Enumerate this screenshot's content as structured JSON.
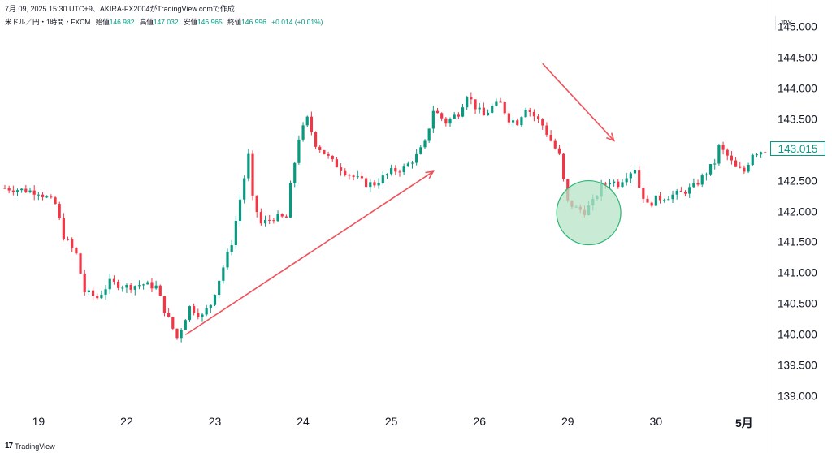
{
  "header": {
    "info": "7月 09, 2025 15:30 UTC+9、AKIRA-FX2004がTradingView.comで作成"
  },
  "symbol": {
    "name": "米ドル／円・1時間・FXCM",
    "open_label": "始値",
    "open": "146.982",
    "high_label": "高値",
    "high": "147.032",
    "low_label": "安値",
    "low": "146.965",
    "close_label": "終値",
    "close": "146.996",
    "change": "+0.014 (+0.01%)"
  },
  "currency": "JPY",
  "price_axis": {
    "labels": [
      "145.000",
      "144.500",
      "144.000",
      "143.500",
      "143.000",
      "142.500",
      "142.000",
      "141.500",
      "141.000",
      "140.500",
      "140.000",
      "139.500",
      "139.000"
    ],
    "last_price": "143.015"
  },
  "time_axis": {
    "labels": [
      "19",
      "22",
      "23",
      "24",
      "25",
      "26",
      "29",
      "30",
      "5月"
    ]
  },
  "footer": {
    "brand": "TradingView"
  },
  "colors": {
    "up": "#089981",
    "down": "#f23645",
    "arrow": "#f0525a",
    "circle_fill": "#b7e4c7",
    "circle_stroke": "#2bb673"
  },
  "chart_data": {
    "type": "candlestick",
    "ylim": [
      138.78,
      145.3
    ],
    "x_ticks": [
      {
        "label": "19",
        "index": 8
      },
      {
        "label": "22",
        "index": 29
      },
      {
        "label": "23",
        "index": 50
      },
      {
        "label": "24",
        "index": 71
      },
      {
        "label": "25",
        "index": 92
      },
      {
        "label": "26",
        "index": 113
      },
      {
        "label": "29",
        "index": 134
      },
      {
        "label": "30",
        "index": 155
      },
      {
        "label": "5月",
        "index": 176
      }
    ],
    "last_price": 143.015,
    "close_path": [
      [
        0,
        142.38
      ],
      [
        8,
        142.32
      ],
      [
        12,
        142.12
      ],
      [
        14,
        141.6
      ],
      [
        17,
        141.3
      ],
      [
        19,
        140.7
      ],
      [
        22,
        140.6
      ],
      [
        25,
        140.85
      ],
      [
        29,
        140.78
      ],
      [
        33,
        140.82
      ],
      [
        36,
        140.78
      ],
      [
        38,
        140.4
      ],
      [
        41,
        139.95
      ],
      [
        44,
        140.45
      ],
      [
        47,
        140.3
      ],
      [
        49,
        140.5
      ],
      [
        52,
        141.1
      ],
      [
        54,
        141.5
      ],
      [
        56,
        142.2
      ],
      [
        58,
        142.9
      ],
      [
        59,
        142.2
      ],
      [
        61,
        141.8
      ],
      [
        64,
        141.9
      ],
      [
        67,
        141.9
      ],
      [
        68,
        142.4
      ],
      [
        70,
        143.2
      ],
      [
        72,
        143.5
      ],
      [
        74,
        143.1
      ],
      [
        78,
        142.8
      ],
      [
        82,
        142.6
      ],
      [
        86,
        142.45
      ],
      [
        88,
        142.45
      ],
      [
        92,
        142.65
      ],
      [
        95,
        142.7
      ],
      [
        98,
        142.9
      ],
      [
        100,
        143.1
      ],
      [
        102,
        143.65
      ],
      [
        105,
        143.45
      ],
      [
        108,
        143.6
      ],
      [
        110,
        143.9
      ],
      [
        112,
        143.7
      ],
      [
        114,
        143.55
      ],
      [
        116,
        143.7
      ],
      [
        118,
        143.75
      ],
      [
        120,
        143.5
      ],
      [
        122,
        143.45
      ],
      [
        124,
        143.7
      ],
      [
        126,
        143.55
      ],
      [
        128,
        143.4
      ],
      [
        130,
        143.15
      ],
      [
        132,
        142.9
      ],
      [
        133,
        142.5
      ],
      [
        134,
        142.15
      ],
      [
        136,
        142.05
      ],
      [
        138,
        142.0
      ],
      [
        140,
        142.15
      ],
      [
        142,
        142.4
      ],
      [
        144,
        142.5
      ],
      [
        146,
        142.45
      ],
      [
        148,
        142.6
      ],
      [
        150,
        142.7
      ],
      [
        151,
        142.4
      ],
      [
        153,
        142.1
      ],
      [
        155,
        142.2
      ],
      [
        158,
        142.25
      ],
      [
        161,
        142.3
      ],
      [
        164,
        142.4
      ],
      [
        166,
        142.55
      ],
      [
        169,
        142.8
      ],
      [
        170,
        143.05
      ],
      [
        172,
        142.9
      ],
      [
        174,
        142.7
      ],
      [
        176,
        142.65
      ],
      [
        178,
        142.95
      ],
      [
        181,
        143.0
      ]
    ],
    "annotations": [
      {
        "type": "arrow",
        "from": [
          43,
          140.0
        ],
        "to": [
          102,
          142.65
        ],
        "color": "#f0525a"
      },
      {
        "type": "arrow",
        "from": [
          128,
          144.4
        ],
        "to": [
          145,
          143.15
        ],
        "color": "#f0525a"
      },
      {
        "type": "circle",
        "center": [
          139,
          141.98
        ],
        "radius_price": 0.52,
        "fill": "#b7e4c7",
        "stroke": "#2bb673"
      }
    ]
  }
}
